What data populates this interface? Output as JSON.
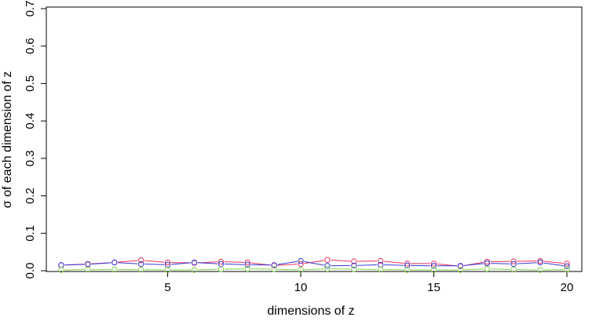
{
  "chart_data": {
    "type": "line",
    "title": "",
    "xlabel": "dimensions of z",
    "ylabel": "σ of each dimension of z",
    "xlim": [
      1,
      20
    ],
    "ylim": [
      0,
      0.7
    ],
    "x_ticks": [
      5,
      10,
      15,
      20
    ],
    "x_tick_labels": [
      "5",
      "10",
      "15",
      "20"
    ],
    "y_ticks": [
      0.0,
      0.1,
      0.2,
      0.3,
      0.4,
      0.5,
      0.6,
      0.7
    ],
    "y_tick_labels": [
      "0.0",
      "0.1",
      "0.2",
      "0.3",
      "0.4",
      "0.5",
      "0.6",
      "0.7"
    ],
    "grid": false,
    "legend": "none",
    "x": [
      1,
      2,
      3,
      4,
      5,
      6,
      7,
      8,
      9,
      10,
      11,
      12,
      13,
      14,
      15,
      16,
      17,
      18,
      19,
      20
    ],
    "series": [
      {
        "color": "#e8325a",
        "values": [
          0.015,
          0.018,
          0.022,
          0.028,
          0.022,
          0.021,
          0.024,
          0.022,
          0.014,
          0.018,
          0.029,
          0.025,
          0.026,
          0.019,
          0.019,
          0.012,
          0.024,
          0.025,
          0.026,
          0.019
        ]
      },
      {
        "color": "#3a3ad8",
        "values": [
          0.015,
          0.017,
          0.022,
          0.018,
          0.016,
          0.022,
          0.018,
          0.016,
          0.015,
          0.026,
          0.013,
          0.014,
          0.016,
          0.014,
          0.013,
          0.013,
          0.02,
          0.018,
          0.022,
          0.012
        ]
      },
      {
        "color": "#7fd34a",
        "values": [
          0.002,
          0.003,
          0.003,
          0.003,
          0.002,
          0.002,
          0.004,
          0.005,
          0.004,
          0.002,
          0.005,
          0.004,
          0.003,
          0.002,
          0.002,
          0.002,
          0.005,
          0.003,
          0.002,
          0.003
        ]
      }
    ]
  }
}
